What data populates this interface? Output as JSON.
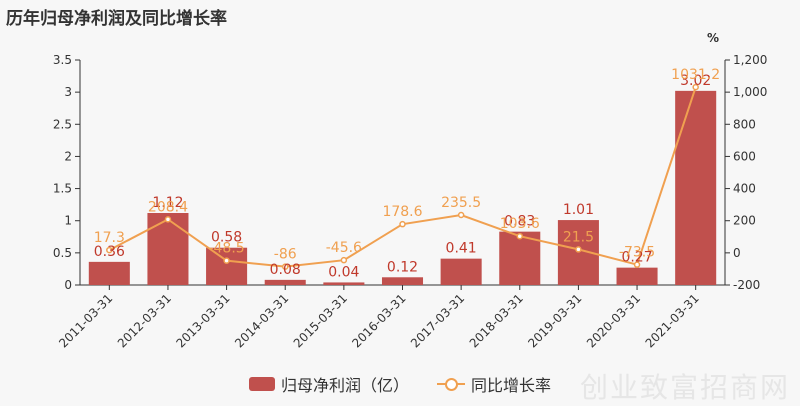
{
  "title": "历年归母净利润及同比增长率",
  "watermark": "创业致富招商网",
  "chart_data": {
    "type": "bar",
    "categories": [
      "2011-03-31",
      "2012-03-31",
      "2013-03-31",
      "2014-03-31",
      "2015-03-31",
      "2016-03-31",
      "2017-03-31",
      "2018-03-31",
      "2019-03-31",
      "2020-03-31",
      "2021-03-31"
    ],
    "series": [
      {
        "name": "归母净利润（亿）",
        "type": "bar",
        "axis": "left",
        "color": "#c0504d",
        "values": [
          0.36,
          1.12,
          0.58,
          0.08,
          0.04,
          0.12,
          0.41,
          0.83,
          1.01,
          0.27,
          3.02
        ],
        "labels": [
          "0.36",
          "1.12",
          "0.58",
          "0.08",
          "0.04",
          "0.12",
          "0.41",
          "0.83",
          "1.01",
          "0.27",
          "3.02"
        ]
      },
      {
        "name": "同比增长率",
        "type": "line",
        "axis": "right",
        "color": "#f0a050",
        "values": [
          17.3,
          208.4,
          -48.5,
          -86,
          -45.6,
          178.6,
          235.5,
          103.6,
          21.5,
          -73.5,
          1031.2
        ],
        "labels": [
          "17.3",
          "208.4",
          "-48.5",
          "-86",
          "-45.6",
          "178.6",
          "235.5",
          "103.6",
          "21.5",
          "-73.5",
          "1031.2"
        ]
      }
    ],
    "y_left": {
      "min": 0,
      "max": 3.5,
      "ticks": [
        "0",
        "0.5",
        "1",
        "1.5",
        "2",
        "2.5",
        "3",
        "3.5"
      ]
    },
    "y_right": {
      "min": -200,
      "max": 1200,
      "unit": "%",
      "ticks": [
        "-200",
        "0",
        "200",
        "400",
        "600",
        "800",
        "1,000",
        "1,200"
      ]
    },
    "legend": "bottom",
    "grid": false
  }
}
